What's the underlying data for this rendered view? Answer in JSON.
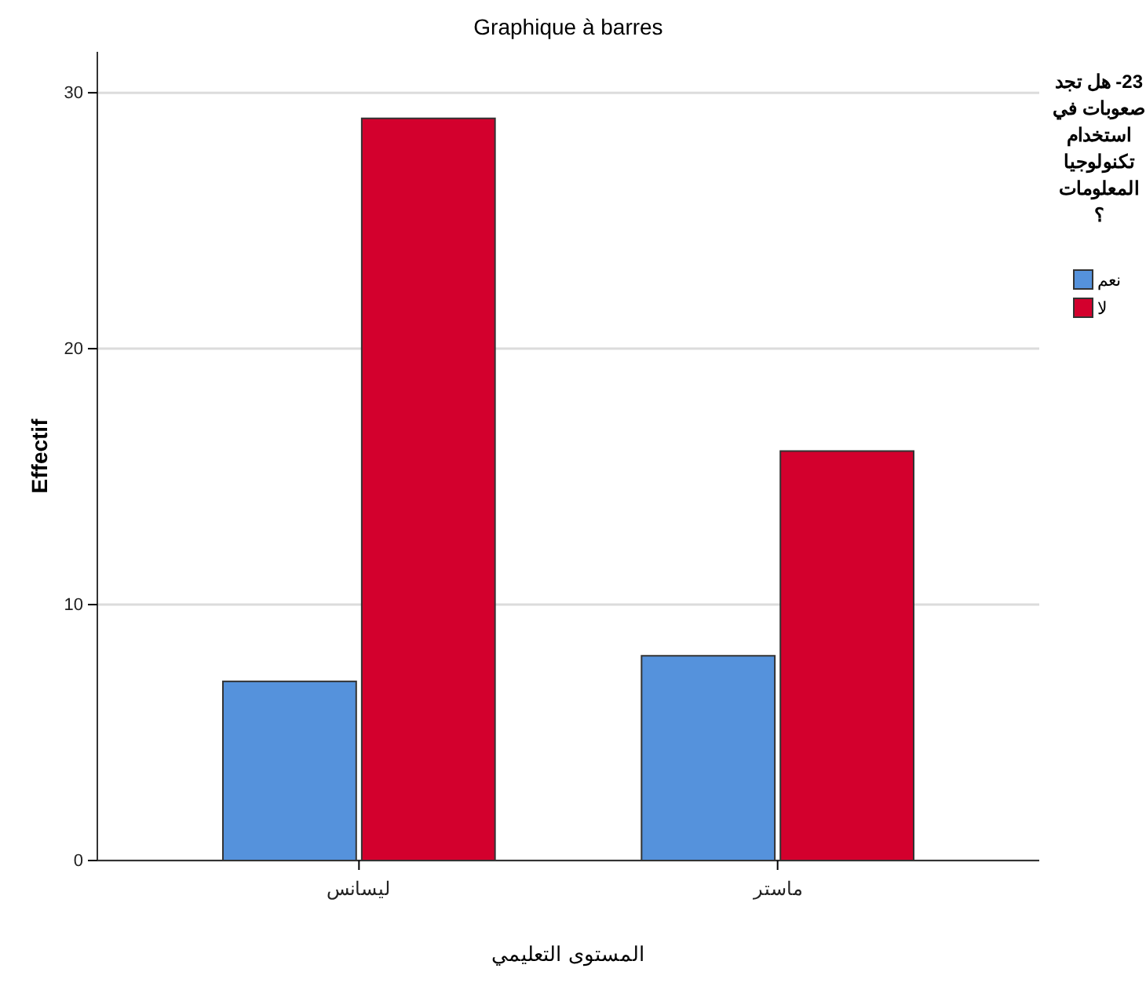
{
  "chart_data": {
    "type": "bar",
    "title": "Graphique à barres",
    "xlabel": "المستوى التعليمي",
    "ylabel": "Effectif",
    "legend_title": "23- هل تجد صعوبات في استخدام تكنولوجيا المعلومات ؟",
    "categories": [
      "ليسانس",
      "ماستر"
    ],
    "series": [
      {
        "name": "نعم",
        "color": "#5592dc",
        "values": [
          7,
          8
        ]
      },
      {
        "name": "لا",
        "color": "#d3002d",
        "values": [
          29,
          16
        ]
      }
    ],
    "ylim": [
      0,
      31.6
    ],
    "yticks": [
      0,
      10,
      20,
      30
    ],
    "grid": "y",
    "legend": "top right"
  }
}
